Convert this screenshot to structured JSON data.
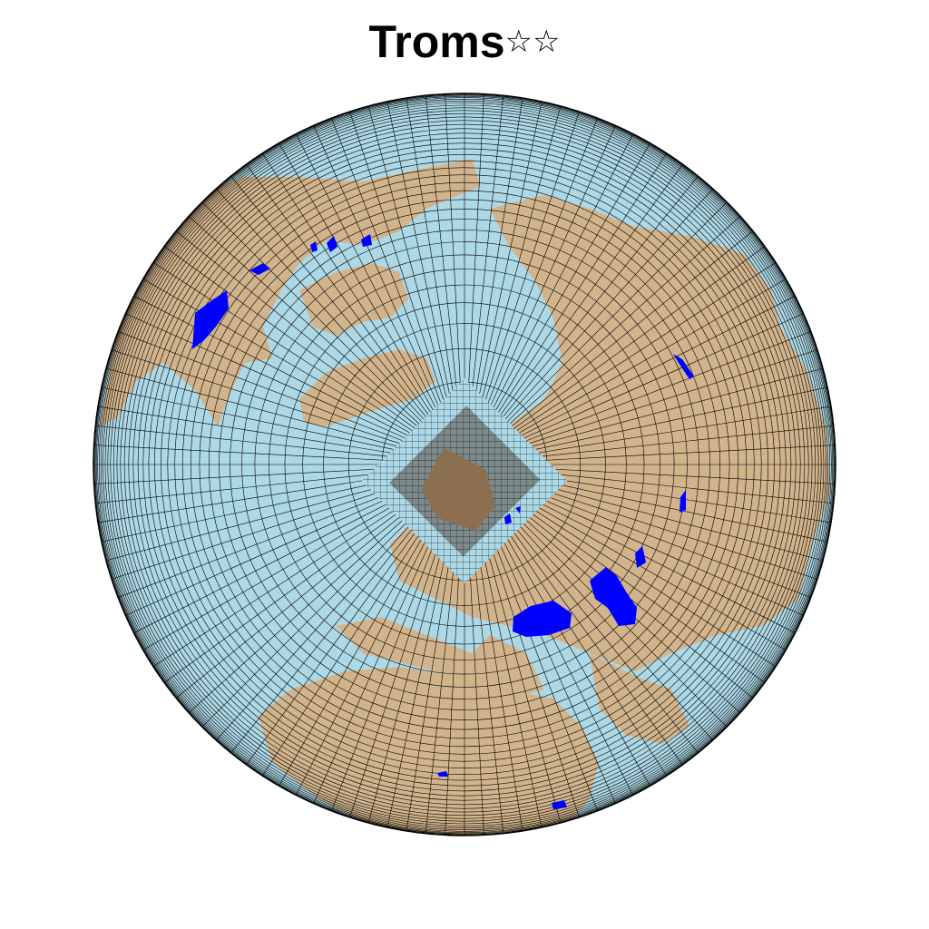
{
  "map": {
    "title": "Troms",
    "title_stars": "☆☆",
    "colors": {
      "ocean": "#add8e6",
      "land": "#d2b48c",
      "lake": "#0000ff",
      "mesh_line": "#000000",
      "refined_land": "#8b6f4e"
    },
    "projection": "orthographic-north-polar",
    "grid": true
  }
}
